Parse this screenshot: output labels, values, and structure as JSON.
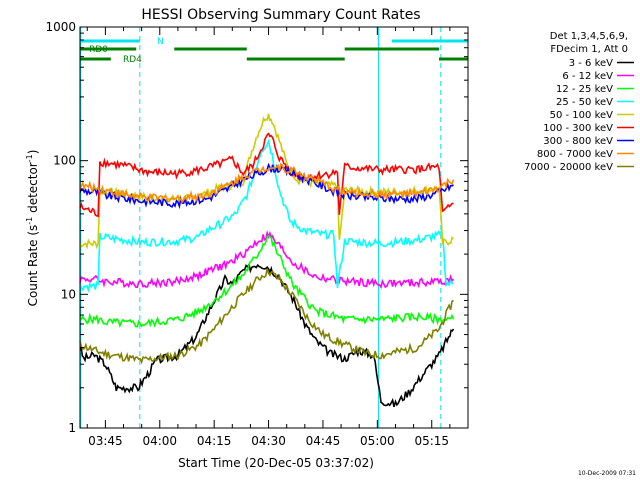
{
  "chart_data": {
    "type": "line",
    "title": "HESSI Observing Summary Count Rates",
    "xlabel": "Start Time (20-Dec-05 03:37:02)",
    "ylabel_main": "Count Rate (s",
    "ylabel_sup1": "-1",
    "ylabel_mid": " detector",
    "ylabel_sup2": "-1",
    "ylabel_end": ")",
    "y_scale": "log",
    "ylim": [
      1,
      1000
    ],
    "xlim_minutes": [
      -7.0,
      100.0
    ],
    "x_ticks": [
      {
        "t": 0,
        "label": "03:45"
      },
      {
        "t": 15,
        "label": "04:00"
      },
      {
        "t": 30,
        "label": "04:15"
      },
      {
        "t": 45,
        "label": "04:30"
      },
      {
        "t": 60,
        "label": "04:45"
      },
      {
        "t": 75,
        "label": "05:00"
      },
      {
        "t": 90,
        "label": "05:15"
      }
    ],
    "y_ticks": [
      {
        "v": 1,
        "label": "1"
      },
      {
        "v": 10,
        "label": "10"
      },
      {
        "v": 100,
        "label": "100"
      },
      {
        "v": 1000,
        "label": "1000"
      }
    ],
    "legend_header": [
      "Det 1,3,4,5,6,9,",
      "FDecim 1, Att 0"
    ],
    "timestamp": "10-Dec-2009 07:31",
    "flags": {
      "rd0_label": "RD0",
      "rd4_label": "RD4",
      "n_label": "N",
      "cyan_bar": [
        [
          -7,
          9.5
        ],
        [
          79,
          100
        ]
      ],
      "rd0_bar": [
        [
          -7,
          8.5
        ],
        [
          19,
          39
        ],
        [
          66,
          92
        ]
      ],
      "rd4_bar": [
        [
          -7,
          1.5
        ],
        [
          39,
          66
        ],
        [
          92,
          100
        ]
      ],
      "solid_lines": [
        -6.8,
        75.3
      ],
      "dashed_lines": [
        9.5,
        92.5
      ]
    },
    "series": [
      {
        "name": "3 - 6 keV",
        "color": "#000000",
        "points": [
          [
            -7,
            4
          ],
          [
            -6,
            3.3
          ],
          [
            -3,
            3.5
          ],
          [
            0,
            3
          ],
          [
            2,
            2.3
          ],
          [
            3,
            2
          ],
          [
            9,
            2
          ],
          [
            12,
            2.6
          ],
          [
            14,
            3.2
          ],
          [
            20,
            3.5
          ],
          [
            25,
            4.8
          ],
          [
            28,
            7
          ],
          [
            30,
            9
          ],
          [
            33,
            13
          ],
          [
            35,
            12
          ],
          [
            38,
            15
          ],
          [
            42,
            17
          ],
          [
            45,
            16
          ],
          [
            48,
            13.5
          ],
          [
            52,
            9
          ],
          [
            55,
            6
          ],
          [
            58,
            4.5
          ],
          [
            62,
            3.6
          ],
          [
            66,
            3.3
          ],
          [
            70,
            3.8
          ],
          [
            74,
            3.5
          ],
          [
            76,
            1.6
          ],
          [
            80,
            1.5
          ],
          [
            84,
            1.9
          ],
          [
            88,
            2.6
          ],
          [
            92,
            3.5
          ],
          [
            95,
            5
          ],
          [
            96,
            5.5
          ]
        ]
      },
      {
        "name": "6 - 12 keV",
        "color": "#ff00ff",
        "points": [
          [
            -7,
            13
          ],
          [
            -3,
            13
          ],
          [
            0,
            12.5
          ],
          [
            10,
            12
          ],
          [
            20,
            12.5
          ],
          [
            26,
            14
          ],
          [
            30,
            15.5
          ],
          [
            34,
            17
          ],
          [
            38,
            20
          ],
          [
            42,
            25
          ],
          [
            45,
            28
          ],
          [
            48,
            23
          ],
          [
            52,
            17
          ],
          [
            58,
            13.5
          ],
          [
            66,
            12.5
          ],
          [
            76,
            12
          ],
          [
            86,
            12.2
          ],
          [
            92,
            12.5
          ],
          [
            96,
            13
          ]
        ]
      },
      {
        "name": "12 - 25 keV",
        "color": "#00ff00",
        "points": [
          [
            -7,
            6.5
          ],
          [
            -2,
            6.5
          ],
          [
            0,
            6.2
          ],
          [
            10,
            6
          ],
          [
            20,
            6.5
          ],
          [
            26,
            7.5
          ],
          [
            30,
            9
          ],
          [
            34,
            11
          ],
          [
            38,
            14
          ],
          [
            42,
            20
          ],
          [
            45,
            28
          ],
          [
            48,
            19
          ],
          [
            52,
            11.5
          ],
          [
            58,
            7.5
          ],
          [
            66,
            6.5
          ],
          [
            76,
            6.5
          ],
          [
            86,
            6.8
          ],
          [
            92,
            6.5
          ],
          [
            96,
            6.5
          ]
        ]
      },
      {
        "name": "25 - 50 keV",
        "color": "#00ffff",
        "points": [
          [
            -7,
            11.5
          ],
          [
            -2,
            11.5
          ],
          [
            -1.5,
            27
          ],
          [
            10,
            24.5
          ],
          [
            20,
            25
          ],
          [
            26,
            27
          ],
          [
            28,
            30
          ],
          [
            32,
            34
          ],
          [
            36,
            40
          ],
          [
            39,
            55
          ],
          [
            41,
            80
          ],
          [
            43,
            120
          ],
          [
            45,
            140
          ],
          [
            46,
            110
          ],
          [
            48,
            60
          ],
          [
            51,
            35
          ],
          [
            55,
            30
          ],
          [
            60,
            28
          ],
          [
            63,
            28
          ],
          [
            64,
            11.5
          ],
          [
            66,
            25
          ],
          [
            76,
            24
          ],
          [
            86,
            25.5
          ],
          [
            93,
            28
          ],
          [
            94,
            12
          ],
          [
            96,
            12
          ]
        ]
      },
      {
        "name": "50 - 100 keV",
        "color": "#cccc00",
        "points": [
          [
            -7,
            24
          ],
          [
            -2,
            24
          ],
          [
            -1.5,
            60
          ],
          [
            5,
            56
          ],
          [
            15,
            52
          ],
          [
            23,
            52
          ],
          [
            27,
            56
          ],
          [
            31,
            62
          ],
          [
            35,
            65
          ],
          [
            38,
            70
          ],
          [
            40,
            110
          ],
          [
            42,
            160
          ],
          [
            44,
            210
          ],
          [
            45,
            220
          ],
          [
            46,
            200
          ],
          [
            48,
            140
          ],
          [
            50,
            95
          ],
          [
            53,
            72
          ],
          [
            57,
            68
          ],
          [
            62,
            65
          ],
          [
            64,
            65
          ],
          [
            64.5,
            24
          ],
          [
            66,
            60
          ],
          [
            76,
            58
          ],
          [
            84,
            59
          ],
          [
            92,
            62
          ],
          [
            93,
            24
          ],
          [
            96,
            26
          ]
        ]
      },
      {
        "name": "100 - 300 keV",
        "color": "#ff0000",
        "points": [
          [
            -7,
            45
          ],
          [
            -2,
            40
          ],
          [
            -1.5,
            98
          ],
          [
            5,
            92
          ],
          [
            12,
            82
          ],
          [
            20,
            80
          ],
          [
            26,
            85
          ],
          [
            32,
            95
          ],
          [
            35,
            102
          ],
          [
            38,
            80
          ],
          [
            41,
            95
          ],
          [
            44,
            140
          ],
          [
            45,
            155
          ],
          [
            46,
            145
          ],
          [
            48,
            105
          ],
          [
            52,
            78
          ],
          [
            57,
            76
          ],
          [
            62,
            80
          ],
          [
            64,
            82
          ],
          [
            64.5,
            40
          ],
          [
            66,
            90
          ],
          [
            76,
            85
          ],
          [
            86,
            86
          ],
          [
            92,
            90
          ],
          [
            93,
            40
          ],
          [
            96,
            48
          ]
        ]
      },
      {
        "name": "300 - 800 keV",
        "color": "#0000ff",
        "points": [
          [
            -7,
            60
          ],
          [
            -2,
            58
          ],
          [
            0,
            55
          ],
          [
            10,
            50
          ],
          [
            20,
            48
          ],
          [
            28,
            52
          ],
          [
            34,
            62
          ],
          [
            38,
            72
          ],
          [
            42,
            80
          ],
          [
            45,
            88
          ],
          [
            48,
            87
          ],
          [
            52,
            80
          ],
          [
            56,
            72
          ],
          [
            60,
            64
          ],
          [
            66,
            55
          ],
          [
            76,
            52
          ],
          [
            86,
            52
          ],
          [
            92,
            58
          ],
          [
            96,
            66
          ]
        ]
      },
      {
        "name": "800 - 7000 keV",
        "color": "#ff8800",
        "points": [
          [
            -7,
            65
          ],
          [
            -2,
            62
          ],
          [
            0,
            60
          ],
          [
            10,
            53
          ],
          [
            20,
            52
          ],
          [
            28,
            56
          ],
          [
            34,
            66
          ],
          [
            38,
            76
          ],
          [
            42,
            84
          ],
          [
            45,
            90
          ],
          [
            48,
            89
          ],
          [
            52,
            84
          ],
          [
            56,
            75
          ],
          [
            60,
            67
          ],
          [
            66,
            58
          ],
          [
            76,
            56
          ],
          [
            86,
            56
          ],
          [
            92,
            62
          ],
          [
            96,
            72
          ]
        ]
      },
      {
        "name": "7000 - 20000 keV",
        "color": "#808000",
        "points": [
          [
            -7,
            4.2
          ],
          [
            -3,
            3.8
          ],
          [
            0,
            3.6
          ],
          [
            10,
            3.2
          ],
          [
            20,
            3.5
          ],
          [
            26,
            4.2
          ],
          [
            30,
            5.5
          ],
          [
            34,
            7.5
          ],
          [
            38,
            10
          ],
          [
            42,
            13
          ],
          [
            45,
            15
          ],
          [
            48,
            13
          ],
          [
            52,
            9.5
          ],
          [
            56,
            6.5
          ],
          [
            60,
            5
          ],
          [
            66,
            4.2
          ],
          [
            72,
            3.6
          ],
          [
            76,
            3.5
          ],
          [
            86,
            4
          ],
          [
            92,
            5.5
          ],
          [
            96,
            9
          ]
        ]
      }
    ]
  }
}
